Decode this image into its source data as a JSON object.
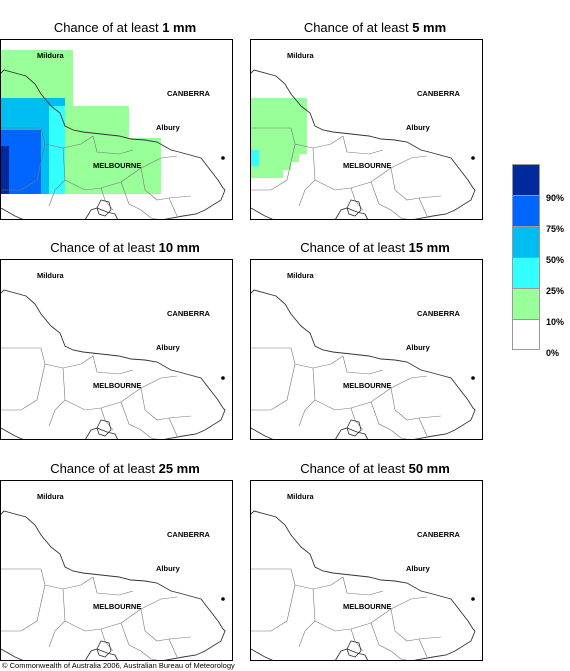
{
  "panels": [
    {
      "title_prefix": "Chance of at least ",
      "title_value": "1 mm",
      "fill": "heavy"
    },
    {
      "title_prefix": "Chance of at least ",
      "title_value": "5 mm",
      "fill": "light"
    },
    {
      "title_prefix": "Chance of at least ",
      "title_value": "10 mm",
      "fill": "none"
    },
    {
      "title_prefix": "Chance of at least ",
      "title_value": "15 mm",
      "fill": "none"
    },
    {
      "title_prefix": "Chance of at least ",
      "title_value": "25 mm",
      "fill": "none"
    },
    {
      "title_prefix": "Chance of at least ",
      "title_value": "50 mm",
      "fill": "none"
    }
  ],
  "cities": {
    "mildura": "Mildura",
    "canberra": "CANBERRA",
    "albury": "Albury",
    "melbourne": "MELBOURNE"
  },
  "legend": {
    "labels": [
      "90%",
      "75%",
      "50%",
      "25%",
      "10%",
      "0%"
    ],
    "colors": [
      "#002a9c",
      "#0066ff",
      "#00bdf2",
      "#33ffff",
      "#99ff99",
      "#ffffff"
    ]
  },
  "copyright": "© Commonwealth of Australia 2006, Australian Bureau of Meteorology"
}
